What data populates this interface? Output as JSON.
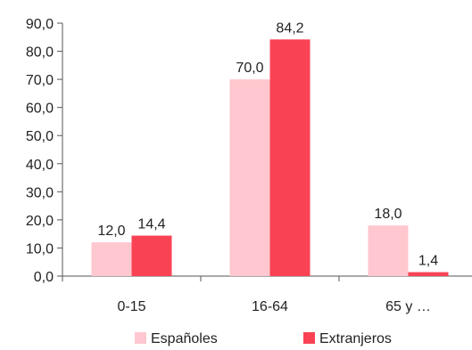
{
  "chart_data": {
    "type": "bar",
    "title": "",
    "xlabel": "",
    "ylabel": "",
    "categories": [
      "0-15",
      "16-64",
      "65 y …"
    ],
    "series": [
      {
        "name": "Españoles",
        "values": [
          12.0,
          70.0,
          18.0
        ],
        "labels": [
          "12,0",
          "70,0",
          "18,0"
        ],
        "color": "#ffc7cf"
      },
      {
        "name": "Extranjeros",
        "values": [
          14.4,
          84.2,
          1.4
        ],
        "labels": [
          "14,4",
          "84,2",
          "1,4"
        ],
        "color": "#f94354"
      }
    ],
    "ylim": [
      0,
      90
    ],
    "yticks": [
      0,
      10,
      20,
      30,
      40,
      50,
      60,
      70,
      80,
      90
    ],
    "ytick_labels": [
      "0,0",
      "10,0",
      "20,0",
      "30,0",
      "40,0",
      "50,0",
      "60,0",
      "70,0",
      "80,0",
      "90,0"
    ],
    "grid": false,
    "legend_position": "bottom"
  }
}
